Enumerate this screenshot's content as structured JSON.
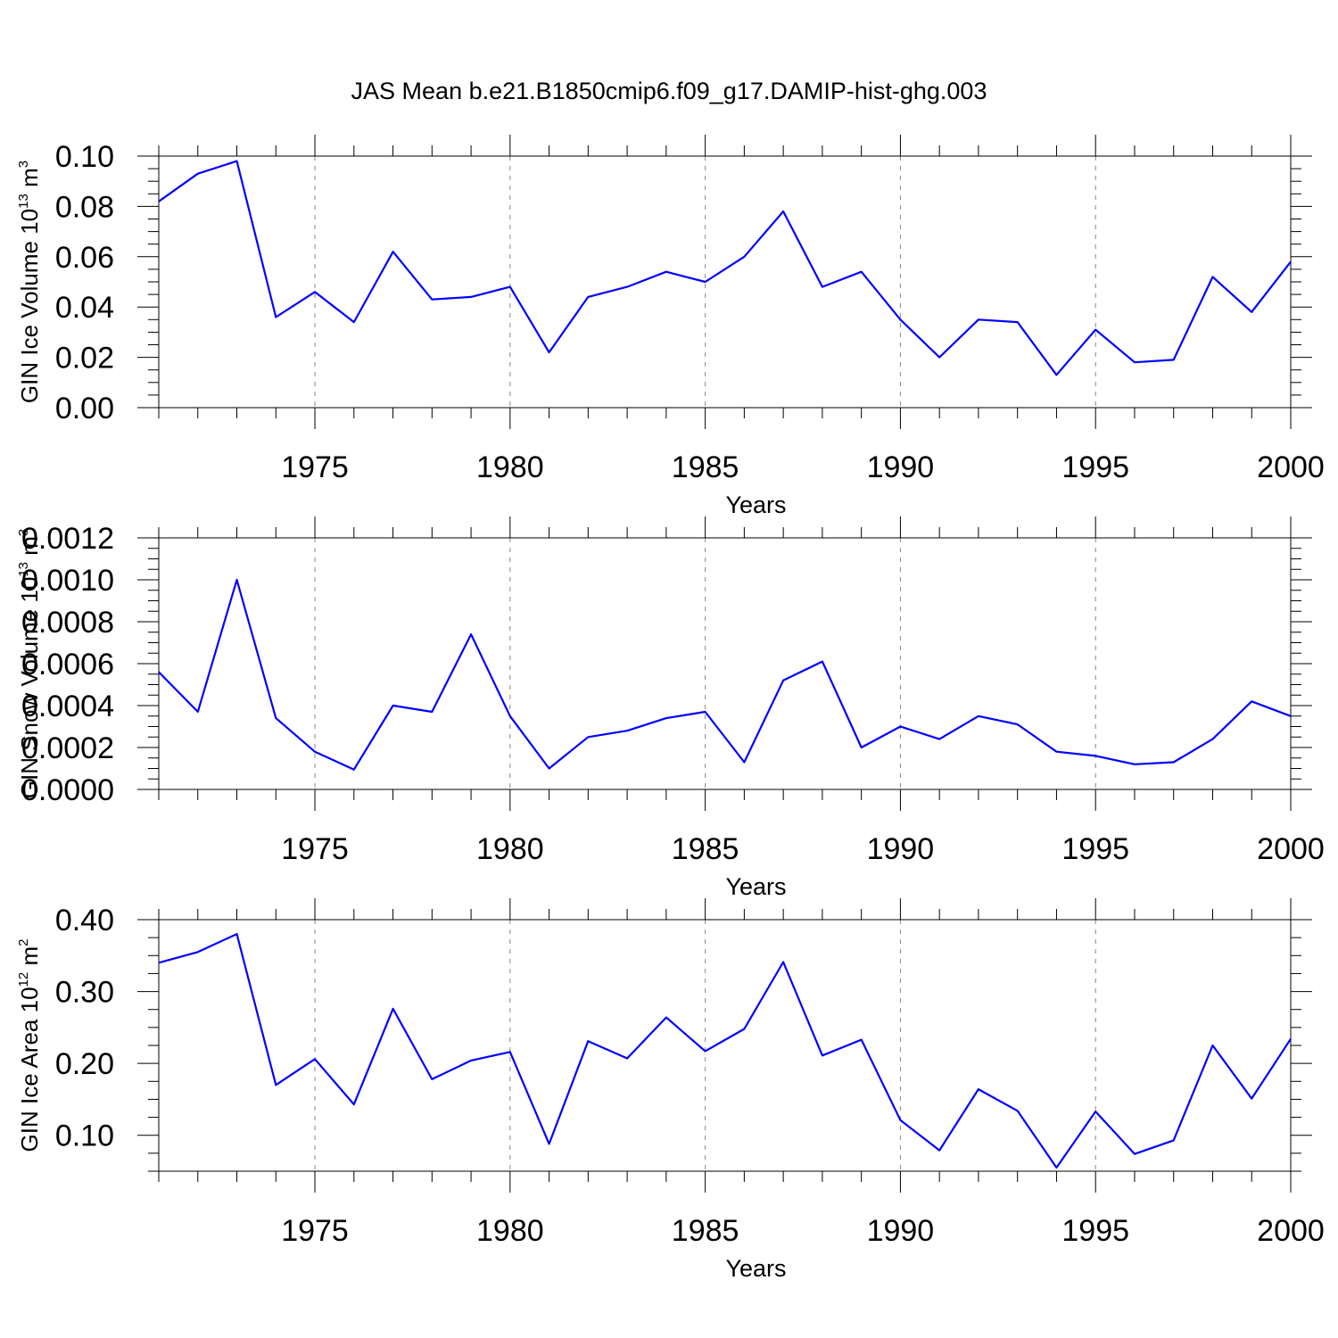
{
  "figure_title": "JAS Mean b.e21.B1850cmip6.f09_g17.DAMIP-hist-ghg.003",
  "colors": {
    "series": "#0000ff",
    "frame": "#000000",
    "grid": "#888888"
  },
  "chart_data": [
    {
      "type": "line",
      "title": "JAS Mean b.e21.B1850cmip6.f09_g17.DAMIP-hist-ghg.003",
      "xlabel": "Years",
      "ylabel": {
        "main": "GIN Ice Volume 10",
        "exp": "13",
        "unit": " m",
        "unit_exp": "3"
      },
      "xlim": [
        1971,
        2000
      ],
      "ylim": [
        0.0,
        0.1
      ],
      "xticks": [
        1975,
        1980,
        1985,
        1990,
        1995,
        2000
      ],
      "yticks": [
        0.0,
        0.02,
        0.04,
        0.06,
        0.08,
        0.1
      ],
      "ytick_labels": [
        "0.00",
        "0.02",
        "0.04",
        "0.06",
        "0.08",
        "0.10"
      ],
      "y_minor_step": 0.005,
      "grid": "vertical dashed at major x ticks",
      "x": [
        1971,
        1972,
        1973,
        1974,
        1975,
        1976,
        1977,
        1978,
        1979,
        1980,
        1981,
        1982,
        1983,
        1984,
        1985,
        1986,
        1987,
        1988,
        1989,
        1990,
        1991,
        1992,
        1993,
        1994,
        1995,
        1996,
        1997,
        1998,
        1999,
        2000
      ],
      "values": [
        0.082,
        0.093,
        0.098,
        0.036,
        0.046,
        0.034,
        0.062,
        0.043,
        0.044,
        0.048,
        0.022,
        0.044,
        0.048,
        0.054,
        0.05,
        0.06,
        0.078,
        0.048,
        0.054,
        0.035,
        0.02,
        0.035,
        0.034,
        0.013,
        0.031,
        0.018,
        0.019,
        0.052,
        0.038,
        0.058
      ]
    },
    {
      "type": "line",
      "xlabel": "Years",
      "ylabel": {
        "main": "GIN Snow Volume 10",
        "exp": "13",
        "unit": " m",
        "unit_exp": "3"
      },
      "xlim": [
        1971,
        2000
      ],
      "ylim": [
        0.0,
        0.0012
      ],
      "xticks": [
        1975,
        1980,
        1985,
        1990,
        1995,
        2000
      ],
      "yticks": [
        0.0,
        0.0002,
        0.0004,
        0.0006,
        0.0008,
        0.001,
        0.0012
      ],
      "ytick_labels": [
        "0.0000",
        "0.0002",
        "0.0004",
        "0.0006",
        "0.0008",
        "0.0010",
        "0.0012"
      ],
      "y_minor_step": 5e-05,
      "grid": "vertical dashed at major x ticks",
      "x": [
        1971,
        1972,
        1973,
        1974,
        1975,
        1976,
        1977,
        1978,
        1979,
        1980,
        1981,
        1982,
        1983,
        1984,
        1985,
        1986,
        1987,
        1988,
        1989,
        1990,
        1991,
        1992,
        1993,
        1994,
        1995,
        1996,
        1997,
        1998,
        1999,
        2000
      ],
      "values": [
        0.00056,
        0.00037,
        0.001,
        0.00034,
        0.00018,
        9.5e-05,
        0.0004,
        0.00037,
        0.00074,
        0.00035,
        0.0001,
        0.00025,
        0.00028,
        0.00034,
        0.00037,
        0.00013,
        0.00052,
        0.00061,
        0.0002,
        0.0003,
        0.00024,
        0.00035,
        0.00031,
        0.00018,
        0.00016,
        0.00012,
        0.00013,
        0.00024,
        0.00042,
        0.00035
      ]
    },
    {
      "type": "line",
      "xlabel": "Years",
      "ylabel": {
        "main": "GIN Ice Area 10",
        "exp": "12",
        "unit": " m",
        "unit_exp": "2"
      },
      "xlim": [
        1971,
        2000
      ],
      "ylim": [
        0.05,
        0.4
      ],
      "xticks": [
        1975,
        1980,
        1985,
        1990,
        1995,
        2000
      ],
      "yticks": [
        0.1,
        0.2,
        0.3,
        0.4
      ],
      "ytick_labels": [
        "0.10",
        "0.20",
        "0.30",
        "0.40"
      ],
      "y_minor_step": 0.025,
      "grid": "vertical dashed at major x ticks",
      "x": [
        1971,
        1972,
        1973,
        1974,
        1975,
        1976,
        1977,
        1978,
        1979,
        1980,
        1981,
        1982,
        1983,
        1984,
        1985,
        1986,
        1987,
        1988,
        1989,
        1990,
        1991,
        1992,
        1993,
        1994,
        1995,
        1996,
        1997,
        1998,
        1999,
        2000
      ],
      "values": [
        0.34,
        0.355,
        0.38,
        0.17,
        0.206,
        0.143,
        0.276,
        0.178,
        0.204,
        0.216,
        0.088,
        0.231,
        0.207,
        0.264,
        0.217,
        0.248,
        0.341,
        0.211,
        0.233,
        0.121,
        0.079,
        0.164,
        0.134,
        0.055,
        0.133,
        0.074,
        0.093,
        0.225,
        0.151,
        0.234
      ]
    }
  ]
}
